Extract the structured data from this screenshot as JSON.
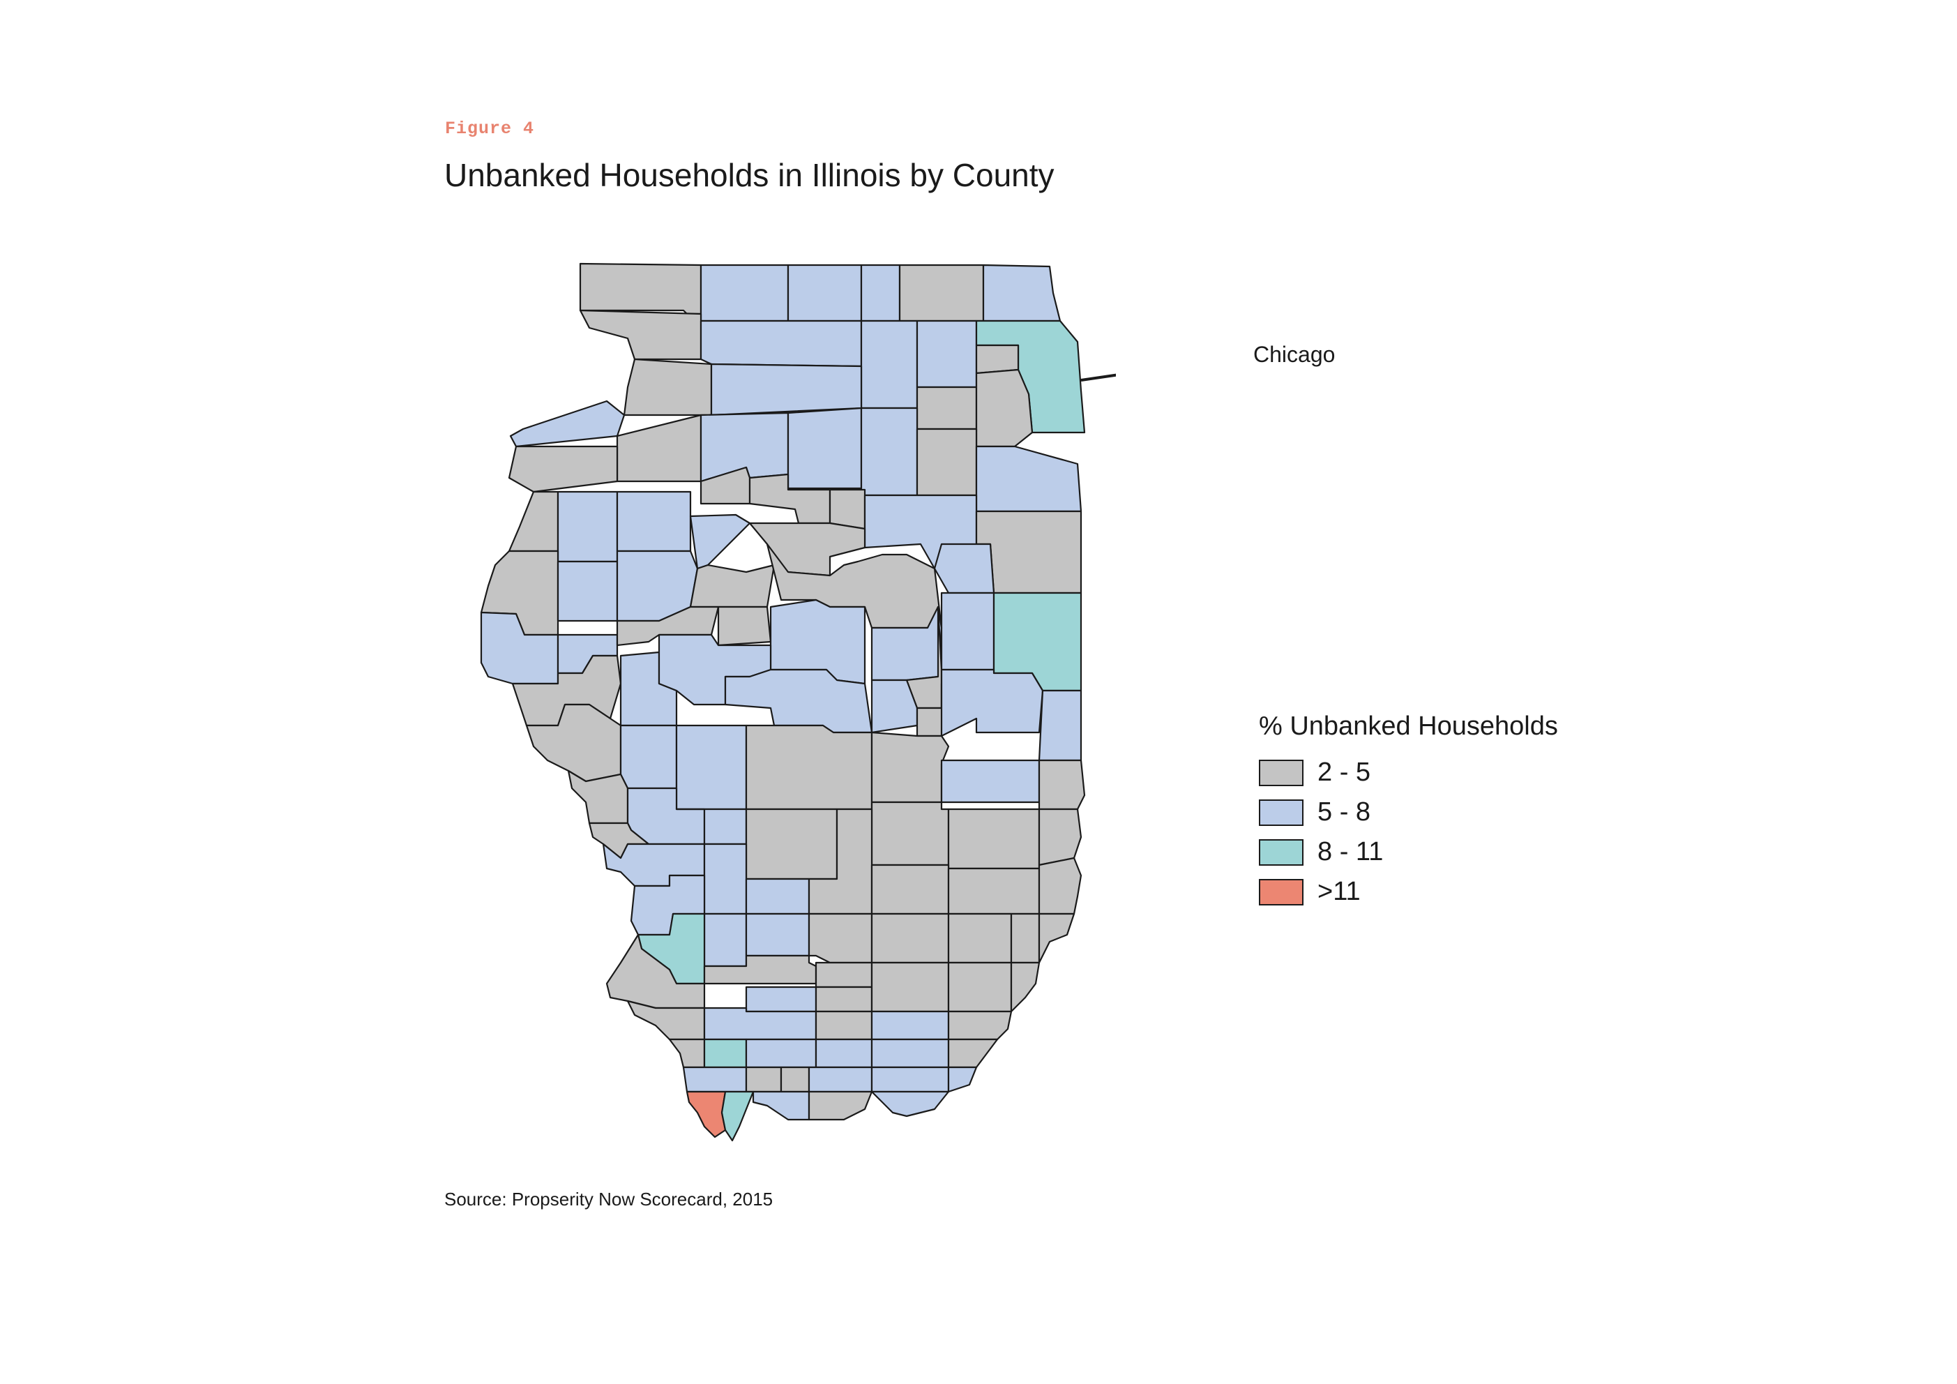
{
  "figure": {
    "label": "Figure 4",
    "title": "Unbanked Households in Illinois by County",
    "source": "Source: Propserity Now Scorecard, 2015"
  },
  "callout": {
    "label": "Chicago"
  },
  "legend": {
    "title": "% Unbanked Households",
    "items": [
      {
        "label": "2 - 5",
        "color": "#c4c4c4"
      },
      {
        "label": "5 - 8",
        "color": "#bccde9"
      },
      {
        "label": "8 - 11",
        "color": "#9dd5d6"
      },
      {
        "label": ">11",
        "color": "#ec8672"
      }
    ]
  }
}
